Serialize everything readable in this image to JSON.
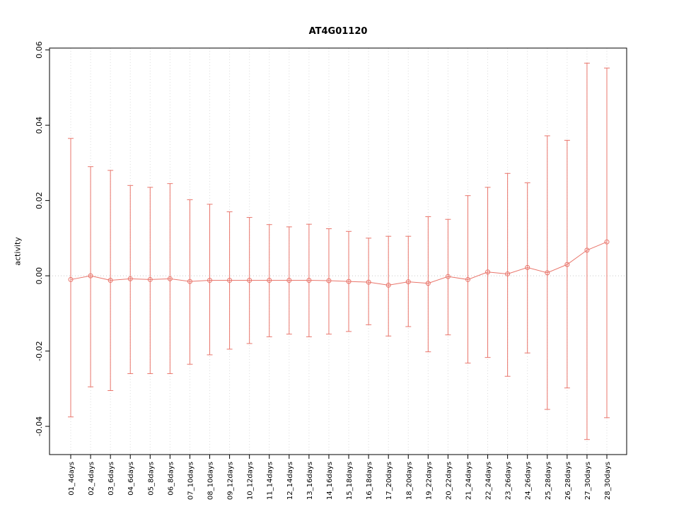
{
  "chart_data": {
    "type": "scatter",
    "title": "AT4G01120",
    "xlabel": "",
    "ylabel": "activity",
    "ylim": [
      -0.0475,
      0.0605
    ],
    "y_ticks": [
      -0.04,
      -0.02,
      0.0,
      0.02,
      0.04,
      0.06
    ],
    "y_tick_labels": [
      "-0.04",
      "-0.02",
      "0.00",
      "0.02",
      "0.04",
      "0.06"
    ],
    "grid": true,
    "zero_line": true,
    "legend": "none",
    "point_style": "open-circle",
    "series_color": "#E9756B",
    "grid_color": "#DBDBDB",
    "zero_line_color": "#C8C8C8",
    "categories": [
      "01_4days",
      "02_4days",
      "03_6days",
      "04_6days",
      "05_8days",
      "06_8days",
      "07_10days",
      "08_10days",
      "09_12days",
      "10_12days",
      "11_14days",
      "12_14days",
      "13_16days",
      "14_16days",
      "15_18days",
      "16_18days",
      "17_20days",
      "18_20days",
      "19_22days",
      "20_22days",
      "21_24days",
      "22_24days",
      "23_26days",
      "24_26days",
      "25_28days",
      "26_28days",
      "27_30days",
      "28_30days"
    ],
    "series": [
      {
        "name": "activity",
        "values": [
          -0.001,
          0.0,
          -0.0012,
          -0.0008,
          -0.001,
          -0.0008,
          -0.0015,
          -0.0012,
          -0.0012,
          -0.0012,
          -0.0012,
          -0.0012,
          -0.0012,
          -0.0013,
          -0.0015,
          -0.0017,
          -0.0025,
          -0.0016,
          -0.002,
          -0.0002,
          -0.001,
          0.001,
          0.0005,
          0.0022,
          0.0008,
          0.003,
          0.0068,
          0.009
        ],
        "lower": [
          -0.0375,
          -0.0295,
          -0.0305,
          -0.026,
          -0.026,
          -0.026,
          -0.0235,
          -0.021,
          -0.0195,
          -0.018,
          -0.0162,
          -0.0155,
          -0.0162,
          -0.0155,
          -0.0148,
          -0.013,
          -0.016,
          -0.0135,
          -0.0202,
          -0.0157,
          -0.0232,
          -0.0217,
          -0.0267,
          -0.0205,
          -0.0355,
          -0.0298,
          -0.0435,
          -0.0377
        ],
        "upper": [
          0.0365,
          0.029,
          0.028,
          0.024,
          0.0235,
          0.0245,
          0.0202,
          0.019,
          0.017,
          0.0155,
          0.0136,
          0.013,
          0.0137,
          0.0125,
          0.0118,
          0.01,
          0.0105,
          0.0105,
          0.0157,
          0.015,
          0.0213,
          0.0235,
          0.0272,
          0.0247,
          0.0372,
          0.036,
          0.0565,
          0.0552
        ]
      }
    ]
  }
}
